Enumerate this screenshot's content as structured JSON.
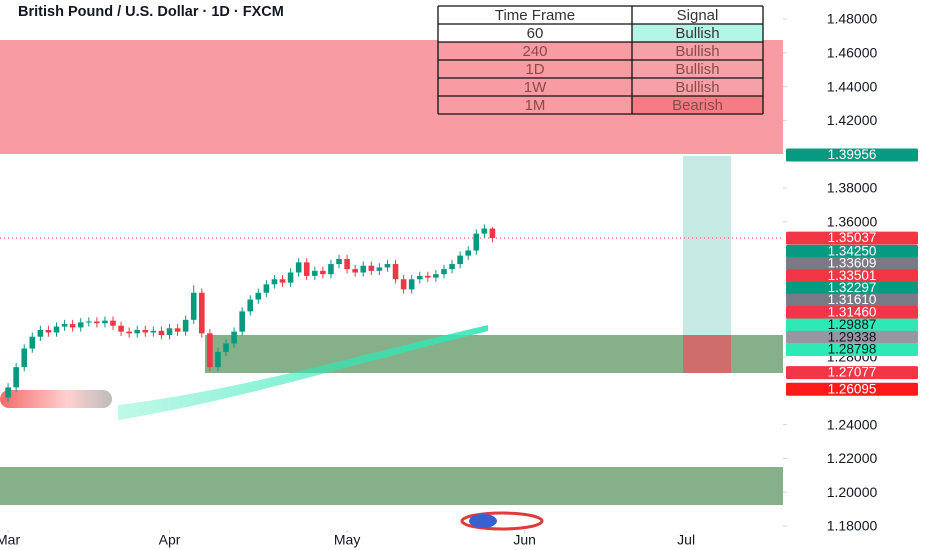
{
  "chart_data": {
    "type": "candlestick",
    "title": "British Pound / U.S. Dollar · 1D · FXCM",
    "xlim": [
      -1,
      96
    ],
    "xticks": [
      {
        "value": 0,
        "label": "Mar"
      },
      {
        "value": 20,
        "label": "Apr"
      },
      {
        "value": 42,
        "label": "May"
      },
      {
        "value": 64,
        "label": "Jun"
      },
      {
        "value": 84,
        "label": "Jul"
      }
    ],
    "ylim": [
      1.18,
      1.48
    ],
    "yticks": [
      {
        "value": 1.48,
        "label": "1.48000"
      },
      {
        "value": 1.46,
        "label": "1.46000"
      },
      {
        "value": 1.44,
        "label": "1.44000"
      },
      {
        "value": 1.42,
        "label": "1.42000"
      },
      {
        "value": 1.38,
        "label": "1.38000"
      },
      {
        "value": 1.36,
        "label": "1.36000"
      },
      {
        "value": 1.28,
        "label": "1.28000"
      },
      {
        "value": 1.24,
        "label": "1.24000"
      },
      {
        "value": 1.22,
        "label": "1.22000"
      },
      {
        "value": 1.2,
        "label": "1.20000"
      },
      {
        "value": 1.18,
        "label": "1.18000"
      }
    ],
    "grid": false,
    "up_color": "#089981",
    "down_color": "#f23645",
    "open": [
      1.256,
      1.262,
      1.274,
      1.285,
      1.292,
      1.296,
      1.2945,
      1.298,
      1.2995,
      1.2975,
      1.3005,
      1.301,
      1.3,
      1.3015,
      1.2985,
      1.295,
      1.294,
      1.296,
      1.2945,
      1.2955,
      1.293,
      1.297,
      1.295,
      1.302,
      1.318,
      1.294,
      1.274,
      1.283,
      1.288,
      1.295,
      1.307,
      1.314,
      1.318,
      1.323,
      1.326,
      1.324,
      1.33,
      1.336,
      1.328,
      1.331,
      1.329,
      1.335,
      1.338,
      1.332,
      1.33,
      1.334,
      1.331,
      1.333,
      1.335,
      1.326,
      1.32,
      1.326,
      1.328,
      1.327,
      1.329,
      1.332,
      1.335,
      1.34,
      1.343,
      1.353,
      1.356
    ],
    "high": [
      1.2645,
      1.2765,
      1.2875,
      1.2945,
      1.2985,
      1.2985,
      1.3005,
      1.302,
      1.302,
      1.303,
      1.3035,
      1.3035,
      1.304,
      1.304,
      1.301,
      1.2975,
      1.2985,
      1.2985,
      1.298,
      1.298,
      1.2995,
      1.2995,
      1.3045,
      1.3225,
      1.3205,
      1.2965,
      1.2855,
      1.2905,
      1.2975,
      1.3095,
      1.3165,
      1.3205,
      1.3255,
      1.3285,
      1.3285,
      1.3325,
      1.3385,
      1.3385,
      1.3335,
      1.3335,
      1.3375,
      1.3405,
      1.3405,
      1.3345,
      1.3365,
      1.3365,
      1.3355,
      1.3375,
      1.3375,
      1.3285,
      1.3285,
      1.3305,
      1.3305,
      1.3315,
      1.3345,
      1.3375,
      1.3425,
      1.3455,
      1.3555,
      1.3585,
      1.357
    ],
    "low": [
      1.2535,
      1.2595,
      1.2715,
      1.2825,
      1.2895,
      1.292,
      1.292,
      1.2955,
      1.295,
      1.295,
      1.298,
      1.2975,
      1.2975,
      1.296,
      1.2925,
      1.2915,
      1.2915,
      1.292,
      1.292,
      1.2905,
      1.2905,
      1.2925,
      1.2925,
      1.2995,
      1.2915,
      1.2715,
      1.2715,
      1.2805,
      1.2855,
      1.2925,
      1.3045,
      1.3115,
      1.3155,
      1.3205,
      1.3215,
      1.3215,
      1.3275,
      1.3255,
      1.3255,
      1.3265,
      1.3265,
      1.3325,
      1.3295,
      1.3275,
      1.3275,
      1.3285,
      1.3285,
      1.3305,
      1.3235,
      1.3175,
      1.3175,
      1.3235,
      1.3245,
      1.3245,
      1.3265,
      1.3295,
      1.3325,
      1.3375,
      1.3405,
      1.3505,
      1.3479
    ],
    "close": [
      1.262,
      1.274,
      1.285,
      1.292,
      1.296,
      1.2945,
      1.298,
      1.2995,
      1.2975,
      1.3005,
      1.301,
      1.3,
      1.3015,
      1.2985,
      1.295,
      1.294,
      1.296,
      1.2945,
      1.2955,
      1.293,
      1.297,
      1.295,
      1.302,
      1.318,
      1.294,
      1.274,
      1.283,
      1.288,
      1.295,
      1.307,
      1.314,
      1.318,
      1.323,
      1.326,
      1.324,
      1.33,
      1.336,
      1.328,
      1.331,
      1.329,
      1.335,
      1.338,
      1.332,
      1.33,
      1.334,
      1.331,
      1.333,
      1.335,
      1.326,
      1.32,
      1.326,
      1.328,
      1.327,
      1.329,
      1.332,
      1.335,
      1.34,
      1.343,
      1.353,
      1.356,
      1.3504
    ],
    "price_tags": [
      {
        "value": 1.39956,
        "color": "#089981",
        "text_color": "#ffffff"
      },
      {
        "value": 1.35037,
        "color": "#f23645",
        "text_color": "#ffffff"
      },
      {
        "value": 1.3425,
        "label": "1.34250",
        "color": "#089981",
        "text_color": "#ffffff"
      },
      {
        "value": 1.33609,
        "color": "#787b86",
        "text_color": "#ffffff"
      },
      {
        "value": 1.33501,
        "color": "#f23645",
        "text_color": "#ffffff"
      },
      {
        "value": 1.32297,
        "color": "#089981",
        "text_color": "#ffffff"
      },
      {
        "value": 1.3161,
        "label": "1.31610",
        "color": "#787b86",
        "text_color": "#ffffff"
      },
      {
        "value": 1.3146,
        "label": "1.31460",
        "color": "#f23645",
        "text_color": "#ffffff"
      },
      {
        "value": 1.29887,
        "color": "#2ee8b6",
        "text_color": "#131722"
      },
      {
        "value": 1.29338,
        "color": "#9598a1",
        "text_color": "#131722"
      },
      {
        "value": 1.28798,
        "color": "#2ee8b6",
        "text_color": "#131722"
      },
      {
        "value": 1.27077,
        "color": "#f23645",
        "text_color": "#ffffff"
      },
      {
        "value": 1.26095,
        "color": "#ff1a1a",
        "text_color": "#ffffff"
      }
    ]
  },
  "signal_table": {
    "header": [
      "Time Frame",
      "Signal"
    ],
    "rows": [
      [
        "60",
        "Bullish"
      ],
      [
        "240",
        "Bullish"
      ],
      [
        "1D",
        "Bullish"
      ],
      [
        "1W",
        "Bullish"
      ],
      [
        "1M",
        "Bearish"
      ]
    ],
    "signal_colors": [
      "#b3f5e6",
      "#f6a1a8",
      "#f6a1a8",
      "#f6a1a8",
      "#f47c84"
    ]
  }
}
